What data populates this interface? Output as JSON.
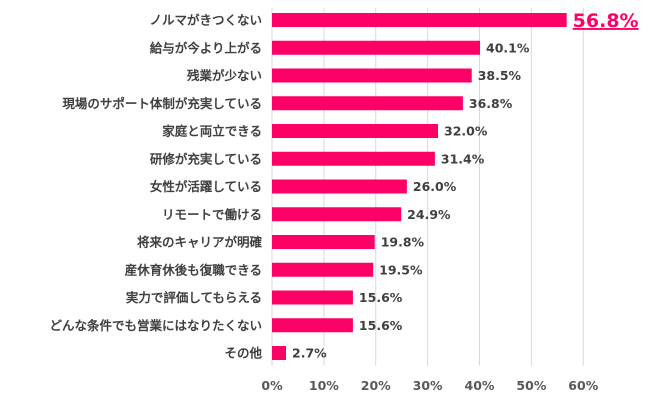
{
  "chart_data": {
    "type": "bar",
    "orientation": "horizontal",
    "categories": [
      "ノルマがきつくない",
      "給与が今より上がる",
      "残業が少ない",
      "現場のサポート体制が充実している",
      "家庭と両立できる",
      "研修が充実している",
      "女性が活躍している",
      "リモートで働ける",
      "将来のキャリアが明確",
      "産休育休後も復職できる",
      "実力で評価してもらえる",
      "どんな条件でも営業にはなりたくない",
      "その他"
    ],
    "values": [
      56.8,
      40.1,
      38.5,
      36.8,
      32.0,
      31.4,
      26.0,
      24.9,
      19.8,
      19.5,
      15.6,
      15.6,
      2.7
    ],
    "value_labels": [
      "56.8%",
      "40.1%",
      "38.5%",
      "36.8%",
      "32.0%",
      "31.4%",
      "26.0%",
      "24.9%",
      "19.8%",
      "19.5%",
      "15.6%",
      "15.6%",
      "2.7%"
    ],
    "highlighted_index": 0,
    "xlim": [
      0,
      60
    ],
    "x_ticks": [
      "0%",
      "10%",
      "20%",
      "30%",
      "40%",
      "50%",
      "60%"
    ],
    "grid": "vertical",
    "bar_color": "#ff0066",
    "highlight_color": "#ff0066",
    "title": "",
    "xlabel": "",
    "ylabel": ""
  }
}
